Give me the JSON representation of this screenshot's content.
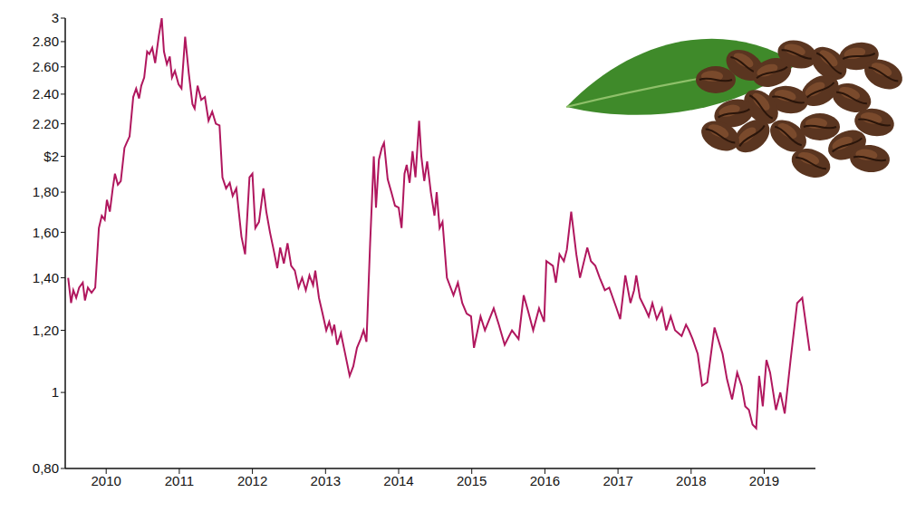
{
  "chart_data": {
    "type": "line",
    "log": "y",
    "grid": false,
    "color": "#b0175e",
    "xlim": [
      2009.44,
      2019.7
    ],
    "xticks": [
      2010,
      2011,
      2012,
      2013,
      2014,
      2015,
      2016,
      2017,
      2018,
      2019
    ],
    "ylim": [
      0.8,
      3
    ],
    "yticks": [
      {
        "value": 0.8,
        "label": "0,80"
      },
      1,
      {
        "value": 1.2,
        "label": "1,20"
      },
      {
        "value": 1.4,
        "label": "1,40"
      },
      {
        "value": 1.6,
        "label": "1,60"
      },
      {
        "value": 1.8,
        "label": "1,80"
      },
      {
        "value": 2,
        "label": "$2"
      },
      {
        "value": 2.2,
        "label": "2.20"
      },
      {
        "value": 2.4,
        "label": "2.40"
      },
      {
        "value": 2.6,
        "label": "2.60"
      },
      {
        "value": 2.8,
        "label": "2.80"
      },
      3
    ],
    "x": [
      2009.48,
      2009.52,
      2009.55,
      2009.59,
      2009.63,
      2009.68,
      2009.71,
      2009.75,
      2009.8,
      2009.85,
      2009.9,
      2009.94,
      2009.98,
      2010.01,
      2010.05,
      2010.09,
      2010.12,
      2010.16,
      2010.2,
      2010.25,
      2010.28,
      2010.32,
      2010.37,
      2010.41,
      2010.45,
      2010.48,
      2010.52,
      2010.56,
      2010.59,
      2010.63,
      2010.67,
      2010.72,
      2010.76,
      2010.79,
      2010.83,
      2010.87,
      2010.9,
      2010.94,
      2010.99,
      2011.03,
      2011.08,
      2011.13,
      2011.18,
      2011.21,
      2011.25,
      2011.3,
      2011.35,
      2011.4,
      2011.45,
      2011.5,
      2011.55,
      2011.59,
      2011.64,
      2011.69,
      2011.73,
      2011.78,
      2011.85,
      2011.9,
      2011.96,
      2012.0,
      2012.04,
      2012.09,
      2012.15,
      2012.19,
      2012.24,
      2012.29,
      2012.34,
      2012.38,
      2012.43,
      2012.48,
      2012.53,
      2012.58,
      2012.63,
      2012.68,
      2012.73,
      2012.78,
      2012.83,
      2012.86,
      2012.91,
      2012.96,
      2013.01,
      2013.05,
      2013.09,
      2013.12,
      2013.16,
      2013.21,
      2013.26,
      2013.33,
      2013.38,
      2013.43,
      2013.48,
      2013.52,
      2013.56,
      2013.61,
      2013.66,
      2013.69,
      2013.73,
      2013.77,
      2013.8,
      2013.85,
      2013.9,
      2013.95,
      2014.0,
      2014.04,
      2014.08,
      2014.11,
      2014.15,
      2014.19,
      2014.23,
      2014.28,
      2014.31,
      2014.35,
      2014.39,
      2014.44,
      2014.49,
      2014.52,
      2014.56,
      2014.6,
      2014.66,
      2014.75,
      2014.81,
      2014.87,
      2014.93,
      2014.99,
      2015.03,
      2015.12,
      2015.18,
      2015.3,
      2015.37,
      2015.45,
      2015.55,
      2015.64,
      2015.71,
      2015.77,
      2015.84,
      2015.92,
      2015.99,
      2016.02,
      2016.11,
      2016.15,
      2016.2,
      2016.26,
      2016.3,
      2016.36,
      2016.43,
      2016.48,
      2016.52,
      2016.58,
      2016.63,
      2016.69,
      2016.75,
      2016.82,
      2016.88,
      2016.98,
      2017.03,
      2017.1,
      2017.17,
      2017.22,
      2017.25,
      2017.3,
      2017.37,
      2017.42,
      2017.47,
      2017.53,
      2017.6,
      2017.66,
      2017.72,
      2017.78,
      2017.87,
      2017.93,
      2017.97,
      2018.02,
      2018.09,
      2018.15,
      2018.22,
      2018.32,
      2018.43,
      2018.49,
      2018.56,
      2018.63,
      2018.69,
      2018.74,
      2018.79,
      2018.84,
      2018.89,
      2018.93,
      2018.98,
      2019.03,
      2019.08,
      2019.16,
      2019.22,
      2019.28,
      2019.36,
      2019.45,
      2019.52,
      2019.62
    ],
    "values": [
      1.4,
      1.3,
      1.35,
      1.32,
      1.36,
      1.38,
      1.31,
      1.36,
      1.34,
      1.36,
      1.62,
      1.68,
      1.66,
      1.76,
      1.7,
      1.82,
      1.9,
      1.84,
      1.86,
      2.05,
      2.08,
      2.12,
      2.38,
      2.44,
      2.37,
      2.46,
      2.52,
      2.72,
      2.7,
      2.75,
      2.63,
      2.85,
      3.0,
      2.72,
      2.62,
      2.68,
      2.52,
      2.57,
      2.47,
      2.44,
      2.84,
      2.55,
      2.33,
      2.3,
      2.46,
      2.36,
      2.38,
      2.22,
      2.28,
      2.2,
      2.19,
      1.88,
      1.82,
      1.85,
      1.78,
      1.82,
      1.58,
      1.5,
      1.88,
      1.9,
      1.62,
      1.65,
      1.82,
      1.7,
      1.6,
      1.52,
      1.44,
      1.53,
      1.46,
      1.55,
      1.45,
      1.43,
      1.36,
      1.4,
      1.35,
      1.41,
      1.37,
      1.43,
      1.32,
      1.26,
      1.2,
      1.23,
      1.19,
      1.22,
      1.15,
      1.19,
      1.13,
      1.05,
      1.08,
      1.14,
      1.17,
      1.2,
      1.16,
      1.55,
      2.0,
      1.72,
      1.98,
      2.05,
      2.08,
      1.87,
      1.8,
      1.73,
      1.72,
      1.62,
      1.9,
      1.95,
      1.85,
      2.03,
      1.88,
      2.22,
      2.0,
      1.86,
      1.97,
      1.8,
      1.68,
      1.8,
      1.62,
      1.65,
      1.4,
      1.33,
      1.38,
      1.3,
      1.26,
      1.25,
      1.14,
      1.25,
      1.2,
      1.28,
      1.22,
      1.15,
      1.2,
      1.17,
      1.33,
      1.27,
      1.2,
      1.28,
      1.23,
      1.47,
      1.45,
      1.38,
      1.5,
      1.47,
      1.52,
      1.7,
      1.5,
      1.4,
      1.45,
      1.53,
      1.47,
      1.45,
      1.4,
      1.35,
      1.36,
      1.28,
      1.24,
      1.41,
      1.3,
      1.35,
      1.41,
      1.32,
      1.28,
      1.25,
      1.3,
      1.24,
      1.28,
      1.2,
      1.25,
      1.2,
      1.18,
      1.22,
      1.2,
      1.17,
      1.12,
      1.02,
      1.03,
      1.21,
      1.12,
      1.04,
      0.98,
      1.06,
      1.02,
      0.96,
      0.95,
      0.91,
      0.9,
      1.05,
      0.96,
      1.1,
      1.06,
      0.95,
      1.0,
      0.94,
      1.1,
      1.3,
      1.32,
      1.13
    ]
  }
}
